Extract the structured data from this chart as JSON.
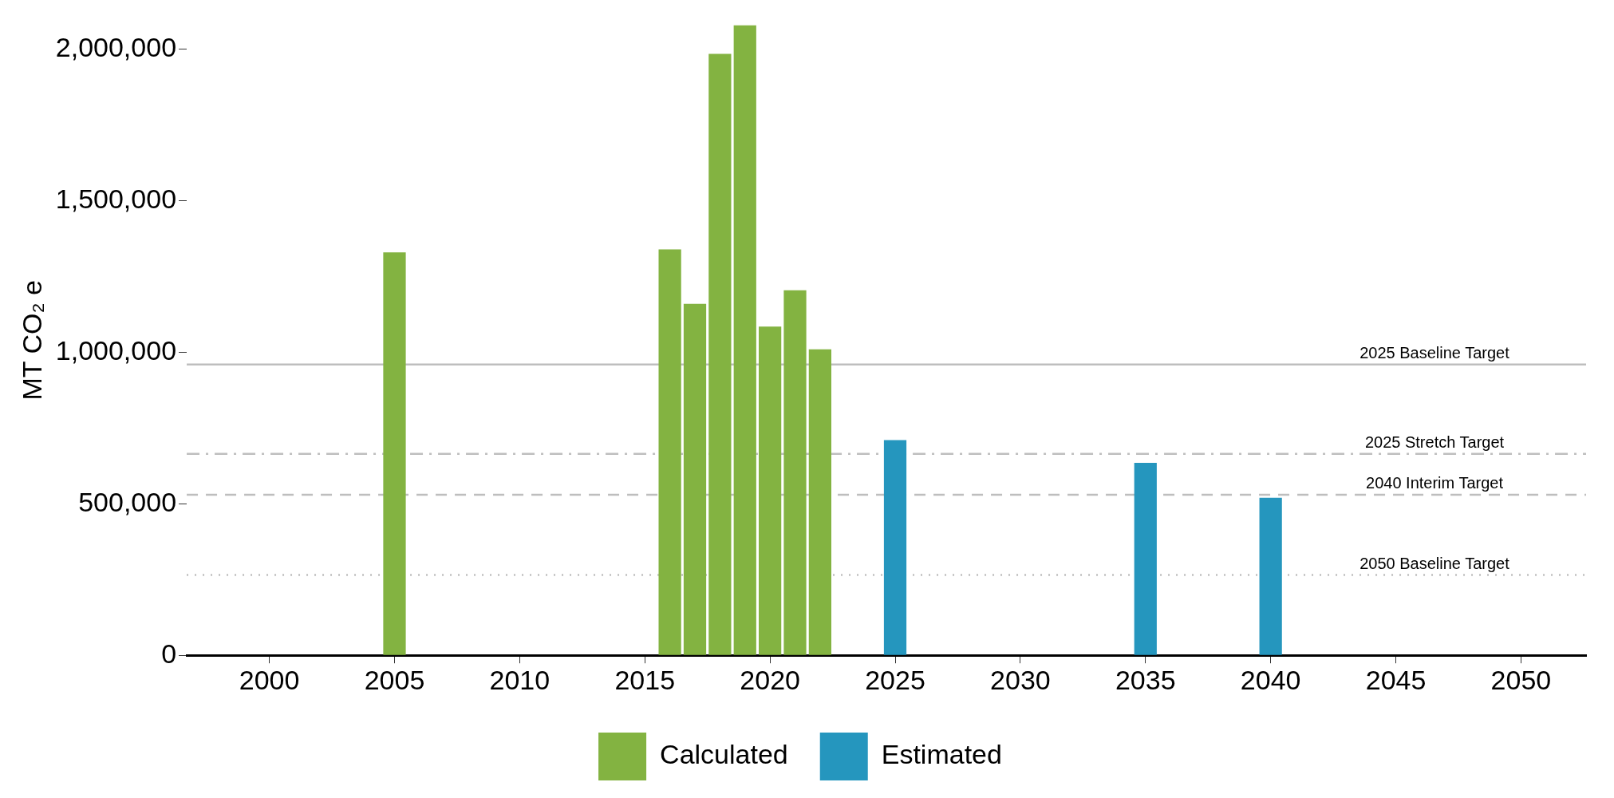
{
  "chart_data": {
    "type": "bar",
    "ylabel": "MT CO₂ e",
    "xlim": [
      1996.7,
      2052.6
    ],
    "xticks": [
      2000,
      2005,
      2010,
      2015,
      2020,
      2025,
      2030,
      2035,
      2040,
      2045,
      2050
    ],
    "ylim": [
      0,
      2080000
    ],
    "yticks": [
      0,
      {
        "value": 500000,
        "label": "500,000"
      },
      {
        "value": 1000000,
        "label": "1,000,000"
      },
      {
        "value": 1500000,
        "label": "1,500,000"
      },
      {
        "value": 2000000,
        "label": "2,000,000"
      }
    ],
    "series": [
      {
        "name": "Calculated",
        "color": "#83b341",
        "x": [
          2005,
          2016,
          2017,
          2018,
          2019,
          2020,
          2021,
          2022
        ],
        "values": [
          1330000,
          1340000,
          1160000,
          1985000,
          2080000,
          1085000,
          1205000,
          1010000
        ]
      },
      {
        "name": "Estimated",
        "color": "#2596be",
        "x": [
          2025,
          2035,
          2040
        ],
        "values": [
          710000,
          635000,
          520000
        ]
      }
    ],
    "ref_lines": [
      {
        "axis": "y",
        "value": 960000,
        "label": "2025 Baseline Target",
        "color": "#bebebe",
        "line_style": "solid"
      },
      {
        "axis": "y",
        "value": 665000,
        "label": "2025 Stretch Target",
        "color": "#bebebe",
        "line_style": "dashdot"
      },
      {
        "axis": "y",
        "value": 530000,
        "label": "2040 Interim Target",
        "color": "#bebebe",
        "line_style": "dashed"
      },
      {
        "axis": "y",
        "value": 265000,
        "label": "2050 Baseline Target",
        "color": "#bebebe",
        "line_style": "dotted"
      }
    ],
    "grid": false,
    "legend": "bottom"
  }
}
